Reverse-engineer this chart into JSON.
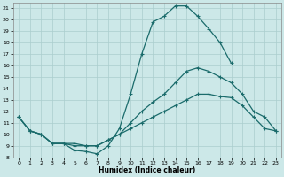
{
  "xlabel": "Humidex (Indice chaleur)",
  "bg_color": "#cce8e8",
  "line_color": "#1a6b6b",
  "grid_color": "#aacece",
  "xlim": [
    -0.5,
    23.5
  ],
  "ylim": [
    8,
    21.5
  ],
  "xticks": [
    0,
    1,
    2,
    3,
    4,
    5,
    6,
    7,
    8,
    9,
    10,
    11,
    12,
    13,
    14,
    15,
    16,
    17,
    18,
    19,
    20,
    21,
    22,
    23
  ],
  "yticks": [
    8,
    9,
    10,
    11,
    12,
    13,
    14,
    15,
    16,
    17,
    18,
    19,
    20,
    21
  ],
  "line1_x": [
    0,
    1,
    2,
    3,
    4,
    5,
    6,
    7,
    8,
    9,
    10,
    11,
    12,
    13,
    14,
    15,
    16,
    17,
    18,
    19
  ],
  "line1_y": [
    11.5,
    10.3,
    10.0,
    9.2,
    9.2,
    8.6,
    8.5,
    8.3,
    9.0,
    10.5,
    13.5,
    17.0,
    19.8,
    20.3,
    21.2,
    21.2,
    20.3,
    19.2,
    18.0,
    16.2
  ],
  "line2_x": [
    0,
    1,
    2,
    3,
    4,
    5,
    6,
    7,
    8,
    9,
    10,
    11,
    12,
    13,
    14,
    15,
    16,
    17,
    18,
    19,
    20,
    21,
    22,
    23
  ],
  "line2_y": [
    11.5,
    10.3,
    10.0,
    9.2,
    9.2,
    9.2,
    9.0,
    9.0,
    9.5,
    10.0,
    11.0,
    12.0,
    12.8,
    13.5,
    14.5,
    15.5,
    15.8,
    15.5,
    15.0,
    14.5,
    13.5,
    12.0,
    11.5,
    10.3
  ],
  "line3_x": [
    0,
    1,
    2,
    3,
    4,
    5,
    6,
    7,
    8,
    9,
    10,
    11,
    12,
    13,
    14,
    15,
    16,
    17,
    18,
    19,
    20,
    21,
    22,
    23
  ],
  "line3_y": [
    11.5,
    10.3,
    10.0,
    9.2,
    9.2,
    9.0,
    9.0,
    9.0,
    9.5,
    10.0,
    10.5,
    11.0,
    11.5,
    12.0,
    12.5,
    13.0,
    13.5,
    13.5,
    13.3,
    13.2,
    12.5,
    11.5,
    10.5,
    10.3
  ]
}
